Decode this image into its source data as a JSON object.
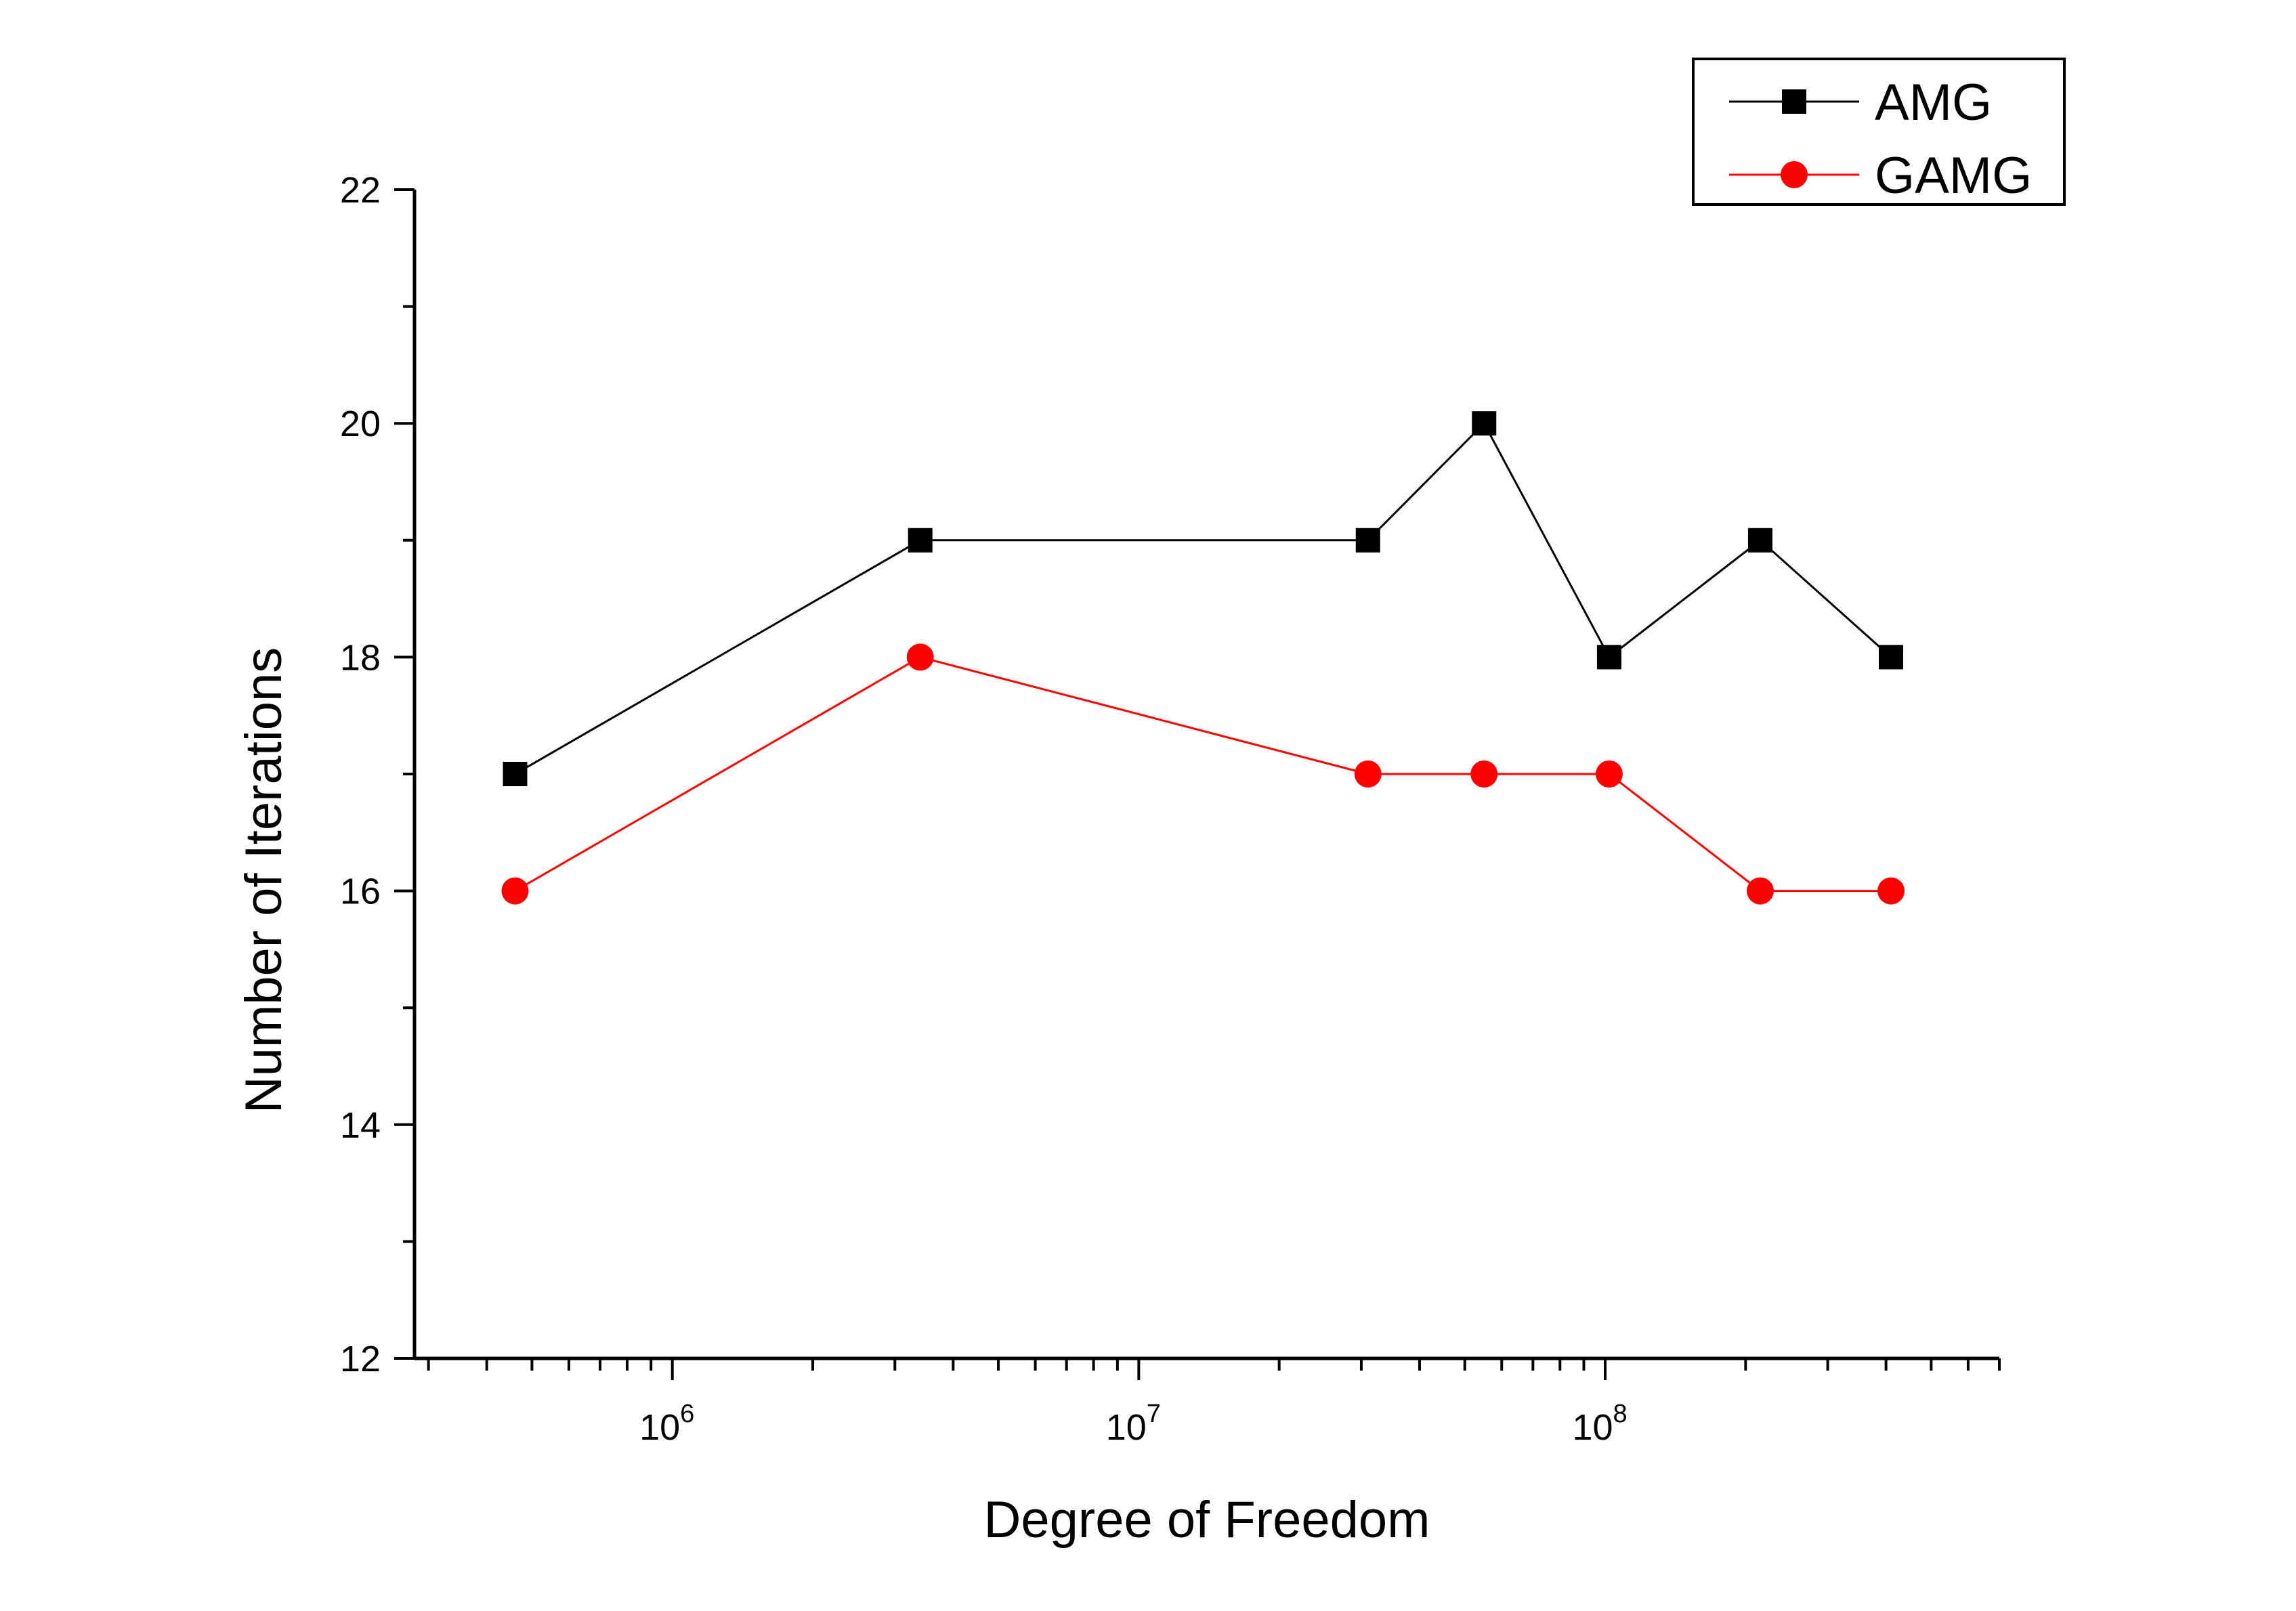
{
  "chart_data": {
    "type": "line",
    "xlabel": "Degree of Freedom",
    "ylabel": "Number of Iterations",
    "xscale": "log",
    "xlim": [
      280000,
      700000000
    ],
    "ylim": [
      12,
      22
    ],
    "yticks": [
      12,
      14,
      16,
      18,
      20,
      22
    ],
    "xtick_major": [
      {
        "value": 1000000,
        "base": "10",
        "exp": "6"
      },
      {
        "value": 10000000,
        "base": "10",
        "exp": "7"
      },
      {
        "value": 100000000,
        "base": "10",
        "exp": "8"
      }
    ],
    "x": [
      460000,
      3400000,
      31000000,
      55000000,
      102000000,
      215000000,
      410000000
    ],
    "series": [
      {
        "name": "AMG",
        "color": "#000000",
        "marker": "square",
        "values": [
          17,
          19,
          19,
          20,
          18,
          19,
          18
        ]
      },
      {
        "name": "GAMG",
        "color": "#ff0000",
        "marker": "circle",
        "values": [
          16,
          18,
          17,
          17,
          17,
          16,
          16
        ]
      }
    ],
    "legend": "top-right",
    "grid": false
  }
}
